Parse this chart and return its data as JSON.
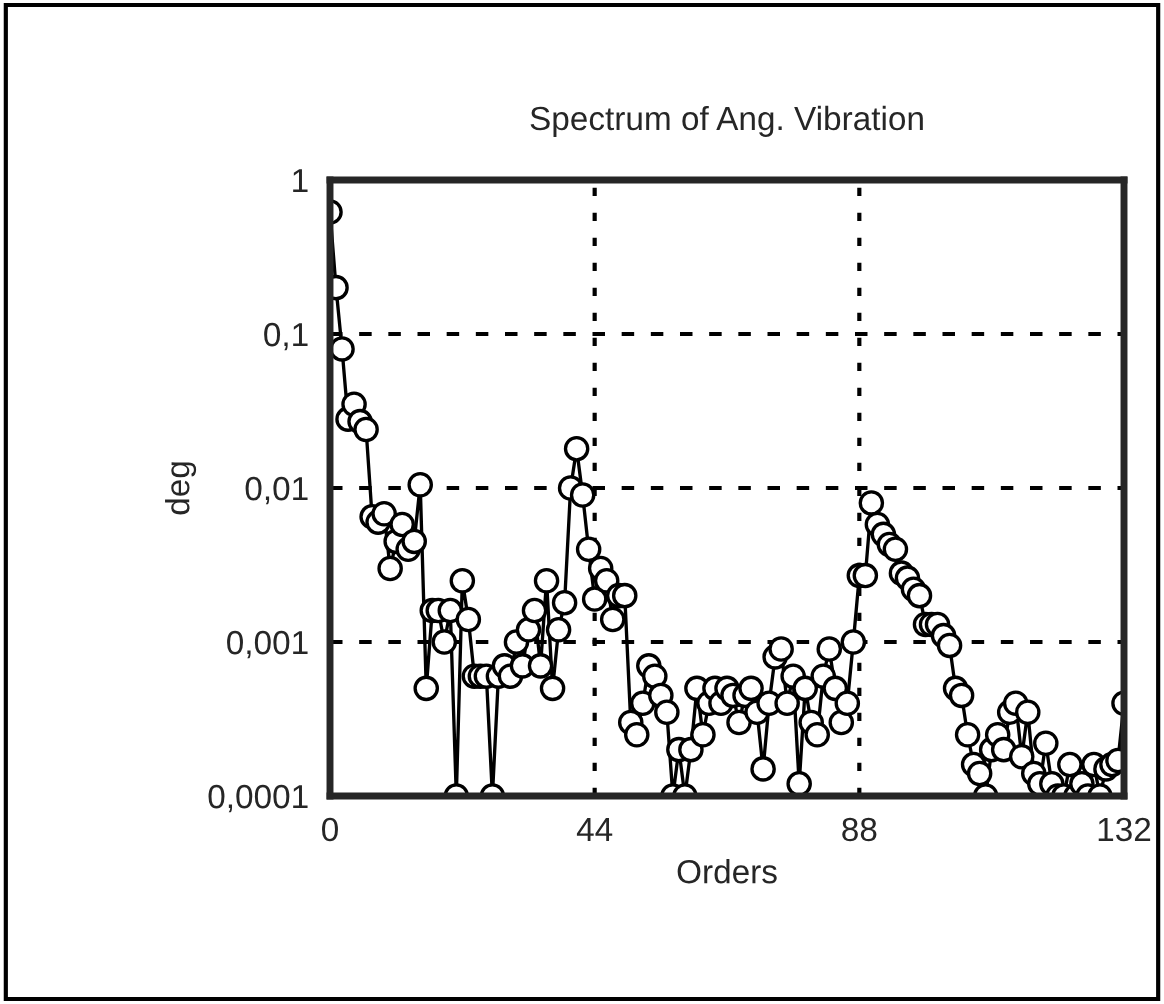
{
  "chart_data": {
    "type": "line",
    "title": "Spectrum of Ang. Vibration",
    "xlabel": "Orders",
    "ylabel": "deg",
    "log": "y",
    "grid": true,
    "marker": "circle",
    "line_style": "solid",
    "legend": false,
    "xlim": [
      0,
      132
    ],
    "xticks": [
      0,
      44,
      88,
      132
    ],
    "ylim": [
      0.0001,
      1
    ],
    "yticks": [
      {
        "value": 0.0001,
        "label": "0,0001"
      },
      {
        "value": 0.001,
        "label": "0,001"
      },
      {
        "value": 0.01,
        "label": "0,01"
      },
      {
        "value": 0.1,
        "label": "0,1"
      },
      {
        "value": 1,
        "label": "1"
      }
    ],
    "x": [
      0,
      1,
      2,
      3,
      4,
      5,
      6,
      7,
      8,
      9,
      10,
      11,
      12,
      13,
      14,
      15,
      16,
      17,
      18,
      19,
      20,
      21,
      22,
      23,
      24,
      25,
      26,
      27,
      28,
      29,
      30,
      31,
      32,
      33,
      34,
      35,
      36,
      37,
      38,
      39,
      40,
      41,
      42,
      43,
      44,
      45,
      46,
      47,
      48,
      49,
      50,
      51,
      52,
      53,
      54,
      55,
      56,
      57,
      58,
      59,
      60,
      61,
      62,
      63,
      64,
      65,
      66,
      67,
      68,
      69,
      70,
      71,
      72,
      73,
      74,
      75,
      76,
      77,
      78,
      79,
      80,
      81,
      82,
      83,
      84,
      85,
      86,
      87,
      88,
      89,
      90,
      91,
      92,
      93,
      94,
      95,
      96,
      97,
      98,
      99,
      100,
      101,
      102,
      103,
      104,
      105,
      106,
      107,
      108,
      109,
      110,
      111,
      112,
      113,
      114,
      115,
      116,
      117,
      118,
      119,
      120,
      121,
      122,
      123,
      124,
      125,
      126,
      127,
      128,
      129,
      130,
      131,
      132
    ],
    "series": [
      {
        "color": "#000000",
        "values": [
          0.62,
          0.2,
          0.08,
          0.028,
          0.035,
          0.027,
          0.024,
          0.0065,
          0.006,
          0.0068,
          0.003,
          0.0045,
          0.0058,
          0.004,
          0.0045,
          0.0105,
          0.0005,
          0.0016,
          0.0016,
          0.001,
          0.0016,
          0.0001,
          0.0025,
          0.0014,
          0.0006,
          0.0006,
          0.0006,
          0.0001,
          0.0006,
          0.0007,
          0.0006,
          0.001,
          0.0007,
          0.0012,
          0.0016,
          0.0007,
          0.0025,
          0.0005,
          0.0012,
          0.0018,
          0.01,
          0.018,
          0.009,
          0.004,
          0.0019,
          0.003,
          0.0025,
          0.0014,
          0.002,
          0.002,
          0.0003,
          0.00025,
          0.0004,
          0.0007,
          0.0006,
          0.00045,
          0.00035,
          0.0001,
          0.0002,
          0.0001,
          0.0002,
          0.0005,
          0.00025,
          0.0004,
          0.0005,
          0.0004,
          0.0005,
          0.00045,
          0.0003,
          0.00045,
          0.0005,
          0.00035,
          0.00015,
          0.0004,
          0.0008,
          0.0009,
          0.0004,
          0.0006,
          0.00012,
          0.0005,
          0.0003,
          0.00025,
          0.0006,
          0.0009,
          0.0005,
          0.0003,
          0.0004,
          0.001,
          0.0027,
          0.0027,
          0.008,
          0.0058,
          0.005,
          0.0043,
          0.004,
          0.0028,
          0.0026,
          0.0022,
          0.002,
          0.0013,
          0.0013,
          0.0013,
          0.0011,
          0.00095,
          0.0005,
          0.00045,
          0.00025,
          0.00016,
          0.00014,
          0.0001,
          0.0002,
          0.00025,
          0.0002,
          0.00035,
          0.0004,
          0.00018,
          0.00035,
          0.00014,
          0.00012,
          0.00022,
          0.00012,
          0.0001,
          0.0001,
          0.00016,
          0.0001,
          0.00012,
          0.0001,
          0.00016,
          0.0001,
          0.00015,
          0.00016,
          0.00017,
          0.0004
        ]
      }
    ]
  }
}
